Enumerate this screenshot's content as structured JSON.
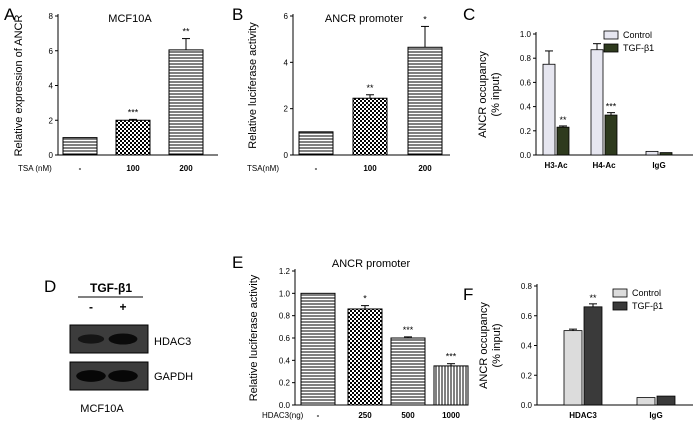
{
  "panels": {
    "A": {
      "letter": "A"
    },
    "B": {
      "letter": "B"
    },
    "C": {
      "letter": "C"
    },
    "D": {
      "letter": "D"
    },
    "E": {
      "letter": "E"
    },
    "F": {
      "letter": "F"
    }
  },
  "colors": {
    "axis": "#000000",
    "dark_bar": "#2b2b2b",
    "light_bar": "#dcdcdc",
    "control_fill": "#e6e6f0",
    "tgf_fill": "#2e3a1e"
  },
  "western_blot": {
    "treatment": "TGF-β1",
    "lane_labels": [
      "-",
      "+"
    ],
    "bands": [
      {
        "label": "HDAC3",
        "intensity": [
          0.55,
          0.85
        ]
      },
      {
        "label": "GAPDH",
        "intensity": [
          0.95,
          0.95
        ]
      }
    ],
    "cell_line": "MCF10A"
  },
  "chart_data": [
    {
      "panel": "A",
      "type": "bar",
      "title": "MCF10A",
      "ylabel": "Relative expression of  ANCR",
      "ylim": [
        0,
        8
      ],
      "yticks": [
        "0",
        "2",
        "4",
        "6",
        "8"
      ],
      "xlabel": "TSA (nM)",
      "categories": [
        "-",
        "100",
        "200"
      ],
      "values": [
        1.0,
        2.0,
        6.05
      ],
      "errors": [
        0,
        0.05,
        0.65
      ],
      "significance": [
        "",
        "***",
        "**"
      ]
    },
    {
      "panel": "B",
      "type": "bar",
      "title": "ANCR promoter",
      "ylabel": "Relative luciferase activity",
      "ylim": [
        0,
        6
      ],
      "yticks": [
        "0",
        "2",
        "4",
        "6"
      ],
      "xlabel": "TSA(nM)",
      "categories": [
        "-",
        "100",
        "200"
      ],
      "values": [
        1.0,
        2.45,
        4.65
      ],
      "errors": [
        0,
        0.15,
        0.9
      ],
      "significance": [
        "",
        "**",
        "*"
      ]
    },
    {
      "panel": "C",
      "type": "bar",
      "ylabel": "ANCR occupancy\n(% input)",
      "ylim": [
        0,
        1.0
      ],
      "yticks": [
        "0.0",
        "0.2",
        "0.4",
        "0.6",
        "0.8",
        "1.0"
      ],
      "categories": [
        "H3-Ac",
        "H4-Ac",
        "IgG"
      ],
      "series": [
        {
          "name": "Control",
          "values": [
            0.75,
            0.87,
            0.03
          ],
          "errors": [
            0.11,
            0.05,
            0
          ]
        },
        {
          "name": "TGF-β1",
          "values": [
            0.23,
            0.33,
            0.02
          ],
          "errors": [
            0.01,
            0.02,
            0
          ]
        }
      ],
      "significance": [
        [
          "",
          "**"
        ],
        [
          "",
          "***"
        ],
        [
          "",
          ""
        ]
      ],
      "legend": "top-right"
    },
    {
      "panel": "E",
      "type": "bar",
      "title": "ANCR promoter",
      "ylabel": "Relative luciferase activity",
      "ylim": [
        0,
        1.2
      ],
      "yticks": [
        "0.0",
        "0.2",
        "0.4",
        "0.6",
        "0.8",
        "1.0",
        "1.2"
      ],
      "xlabel": "HDAC3(ng)",
      "categories": [
        "-",
        "250",
        "500",
        "1000"
      ],
      "values": [
        1.0,
        0.86,
        0.6,
        0.35
      ],
      "errors": [
        0,
        0.03,
        0.01,
        0.02
      ],
      "significance": [
        "",
        "*",
        "***",
        "***"
      ]
    },
    {
      "panel": "F",
      "type": "bar",
      "ylabel": "ANCR occupancy\n(% input)",
      "ylim": [
        0,
        0.8
      ],
      "yticks": [
        "0.0",
        "0.2",
        "0.4",
        "0.6",
        "0.8"
      ],
      "categories": [
        "HDAC3",
        "IgG"
      ],
      "series": [
        {
          "name": "Control",
          "values": [
            0.5,
            0.05
          ],
          "errors": [
            0.01,
            0
          ]
        },
        {
          "name": "TGF-β1",
          "values": [
            0.66,
            0.06
          ],
          "errors": [
            0.02,
            0
          ]
        }
      ],
      "significance": [
        [
          "",
          "**"
        ],
        [
          "",
          ""
        ]
      ],
      "legend": "top-right"
    }
  ]
}
